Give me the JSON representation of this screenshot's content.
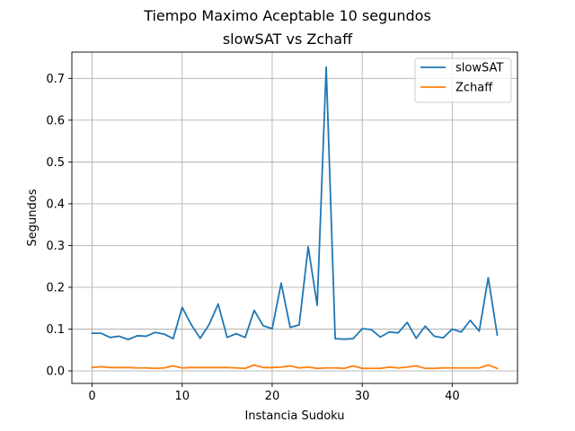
{
  "chart_data": {
    "type": "line",
    "title_line1": "Tiempo Maximo Aceptable 10 segundos",
    "title_line2": "slowSAT vs Zchaff",
    "xlabel": "Instancia Sudoku",
    "ylabel": "Segundos",
    "xlim": [
      -2.25,
      47.25
    ],
    "ylim": [
      -0.03,
      0.763
    ],
    "xticks": [
      0,
      10,
      20,
      30,
      40
    ],
    "yticks": [
      0.0,
      0.1,
      0.2,
      0.3,
      0.4,
      0.5,
      0.6,
      0.7
    ],
    "ytick_labels": [
      "0.0",
      "0.1",
      "0.2",
      "0.3",
      "0.4",
      "0.5",
      "0.6",
      "0.7"
    ],
    "grid": true,
    "legend_position": "top-right",
    "x": [
      0,
      1,
      2,
      3,
      4,
      5,
      6,
      7,
      8,
      9,
      10,
      11,
      12,
      13,
      14,
      15,
      16,
      17,
      18,
      19,
      20,
      21,
      22,
      23,
      24,
      25,
      26,
      27,
      28,
      29,
      30,
      31,
      32,
      33,
      34,
      35,
      36,
      37,
      38,
      39,
      40,
      41,
      42,
      43,
      44,
      45
    ],
    "series": [
      {
        "name": "slowSAT",
        "color": "#1f77b4",
        "values": [
          0.09,
          0.09,
          0.08,
          0.083,
          0.075,
          0.084,
          0.083,
          0.092,
          0.088,
          0.077,
          0.152,
          0.111,
          0.078,
          0.111,
          0.16,
          0.08,
          0.089,
          0.08,
          0.145,
          0.108,
          0.101,
          0.21,
          0.104,
          0.11,
          0.297,
          0.157,
          0.727,
          0.077,
          0.076,
          0.077,
          0.101,
          0.099,
          0.081,
          0.093,
          0.091,
          0.116,
          0.078,
          0.107,
          0.083,
          0.079,
          0.1,
          0.093,
          0.121,
          0.095,
          0.223,
          0.086
        ]
      },
      {
        "name": "Zchaff",
        "color": "#ff7f0e",
        "values": [
          0.008,
          0.01,
          0.008,
          0.008,
          0.008,
          0.007,
          0.007,
          0.006,
          0.007,
          0.012,
          0.007,
          0.008,
          0.008,
          0.008,
          0.008,
          0.008,
          0.007,
          0.006,
          0.014,
          0.008,
          0.008,
          0.009,
          0.012,
          0.007,
          0.009,
          0.006,
          0.007,
          0.007,
          0.006,
          0.012,
          0.006,
          0.006,
          0.006,
          0.009,
          0.007,
          0.009,
          0.012,
          0.006,
          0.006,
          0.007,
          0.007,
          0.007,
          0.007,
          0.007,
          0.014,
          0.006
        ]
      }
    ]
  }
}
